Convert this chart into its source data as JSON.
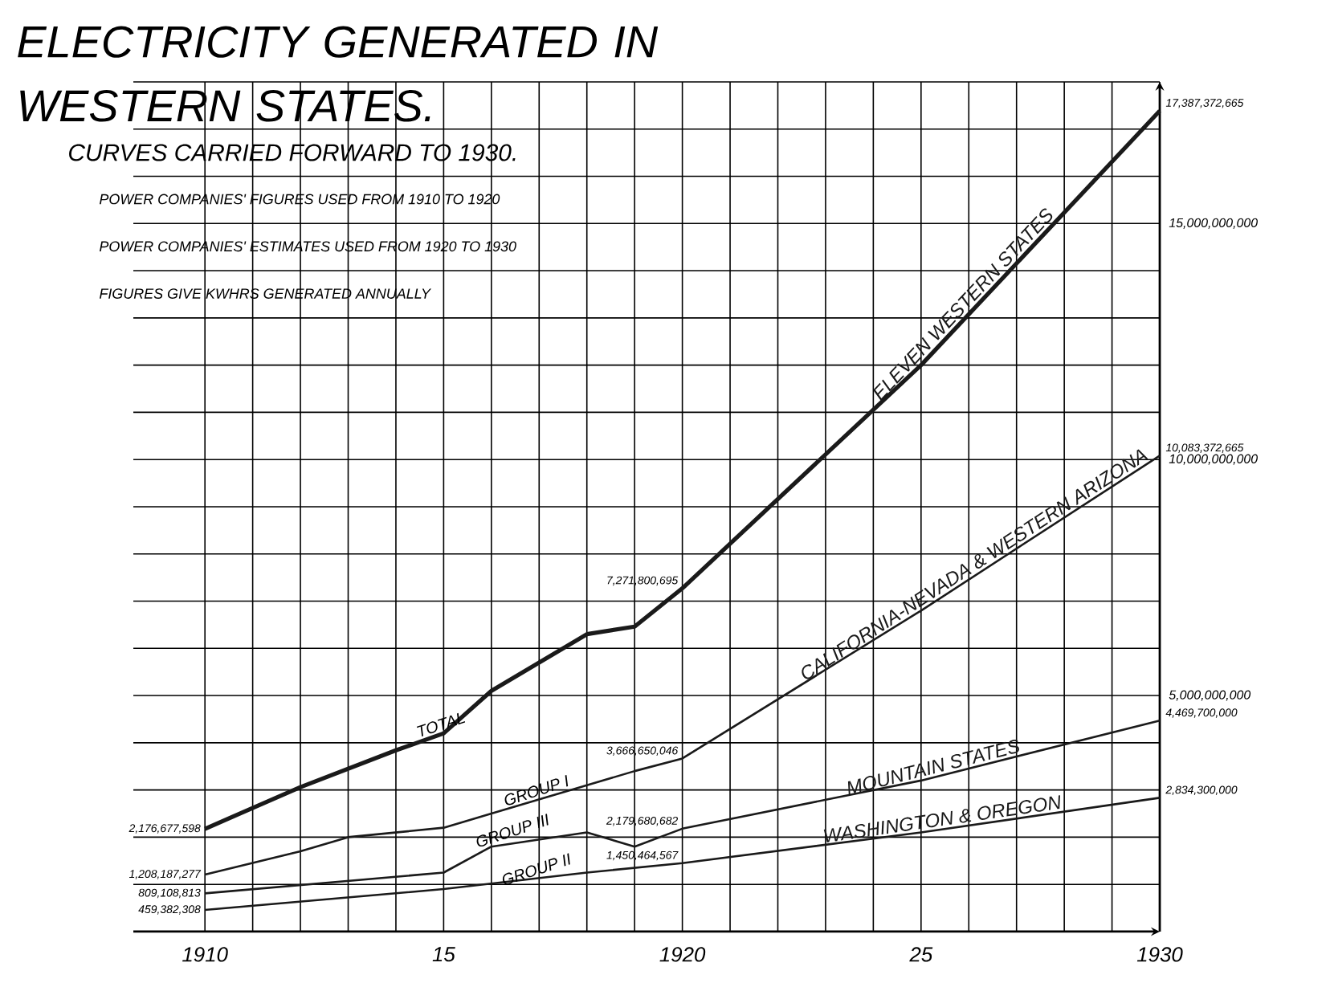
{
  "chart_data": {
    "type": "line",
    "title": "ELECTRICITY GENERATED IN WESTERN STATES.",
    "subtitle": "CURVES CARRIED FORWARD TO 1930.",
    "annotations": [
      "POWER COMPANIES' FIGURES USED FROM 1910 TO 1920",
      "POWER COMPANIES' ESTIMATES USED FROM 1920 TO 1930",
      "FIGURES GIVE KWHRS GENERATED ANNUALLY",
      {
        "text": "TOTAL",
        "x": 1915,
        "y": 4200000000
      },
      {
        "text": "GROUP I",
        "x": 1917,
        "y": 2800000000
      },
      {
        "text": "GROUP III",
        "x": 1916.5,
        "y": 1950000000
      },
      {
        "text": "GROUP II",
        "x": 1917,
        "y": 1130000000
      }
    ],
    "xlim": [
      1908.5,
      1930
    ],
    "ylim": [
      0,
      18000000000
    ],
    "xticks": [
      1910,
      {
        "value": 1911,
        "label": null
      },
      {
        "value": 1912,
        "label": null
      },
      {
        "value": 1913,
        "label": null
      },
      {
        "value": 1914,
        "label": null
      },
      {
        "value": 1915,
        "label": "15"
      },
      {
        "value": 1916,
        "label": null
      },
      {
        "value": 1917,
        "label": null
      },
      {
        "value": 1918,
        "label": null
      },
      {
        "value": 1919,
        "label": null
      },
      1920,
      {
        "value": 1921,
        "label": null
      },
      {
        "value": 1922,
        "label": null
      },
      {
        "value": 1923,
        "label": null
      },
      {
        "value": 1924,
        "label": null
      },
      {
        "value": 1925,
        "label": "25"
      },
      {
        "value": 1926,
        "label": null
      },
      {
        "value": 1927,
        "label": null
      },
      {
        "value": 1928,
        "label": null
      },
      {
        "value": 1929,
        "label": null
      },
      1930
    ],
    "yticks": [
      {
        "value": 1000000000,
        "label": null
      },
      {
        "value": 2000000000,
        "label": null
      },
      {
        "value": 3000000000,
        "label": null
      },
      {
        "value": 4000000000,
        "label": null
      },
      {
        "value": 5000000000,
        "label": "5,000,000,000"
      },
      {
        "value": 6000000000,
        "label": null
      },
      {
        "value": 7000000000,
        "label": null
      },
      {
        "value": 8000000000,
        "label": null
      },
      {
        "value": 9000000000,
        "label": null
      },
      {
        "value": 10000000000,
        "label": "10,000,000,000"
      },
      {
        "value": 11000000000,
        "label": null
      },
      {
        "value": 12000000000,
        "label": null
      },
      {
        "value": 13000000000,
        "label": null
      },
      {
        "value": 14000000000,
        "label": null
      },
      {
        "value": 15000000000,
        "label": "15,000,000,000"
      },
      {
        "value": 16000000000,
        "label": null
      },
      {
        "value": 17000000000,
        "label": null
      },
      {
        "value": 18000000000,
        "label": null
      }
    ],
    "grid": true,
    "legend": false,
    "marker": "none",
    "line_style": "solid",
    "series": [
      {
        "name": "ELEVEN WESTERN STATES",
        "color": "#1a1a1a",
        "x": [
          1910,
          1912,
          1914,
          1915,
          1916,
          1918,
          1919,
          1920,
          1925,
          1930
        ],
        "values": [
          2176677598,
          3060000000,
          3840000000,
          4200000000,
          5100000000,
          6300000000,
          6460000000,
          7271800695,
          12000000000,
          17387372665
        ],
        "value_labels": [
          "2,176,677,598",
          null,
          null,
          null,
          null,
          null,
          null,
          "7,271,800,695",
          null,
          "17,387,372,665"
        ]
      },
      {
        "name": "CALIFORNIA-NEVADA & WESTERN ARIZONA",
        "color": "#1a1a1a",
        "x": [
          1910,
          1912,
          1913,
          1915,
          1916,
          1918,
          1919,
          1920,
          1925,
          1930
        ],
        "values": [
          1208187277,
          1700000000,
          2000000000,
          2200000000,
          2500000000,
          3100000000,
          3400000000,
          3666650046,
          6800000000,
          10083372665
        ],
        "value_labels": [
          "1,208,187,277",
          null,
          null,
          null,
          null,
          null,
          null,
          "3,666,650,046",
          null,
          "10,083,372,665"
        ]
      },
      {
        "name": "MOUNTAIN STATES",
        "color": "#1a1a1a",
        "x": [
          1910,
          1915,
          1916,
          1918,
          1919,
          1920,
          1925,
          1930
        ],
        "values": [
          809108813,
          1250000000,
          1800000000,
          2100000000,
          1800000000,
          2179680682,
          3200000000,
          4469700000
        ],
        "value_labels": [
          "809,108,813",
          null,
          null,
          null,
          null,
          "2,179,680,682",
          null,
          "4,469,700,000"
        ]
      },
      {
        "name": "WASHINGTON & OREGON",
        "color": "#1a1a1a",
        "x": [
          1910,
          1915,
          1918,
          1920,
          1925,
          1930
        ],
        "values": [
          459382308,
          900000000,
          1250000000,
          1450464567,
          2100000000,
          2834300000
        ],
        "value_labels": [
          "459,382,308",
          null,
          null,
          "1,450,464,567",
          null,
          "2,834,300,000"
        ]
      }
    ]
  }
}
